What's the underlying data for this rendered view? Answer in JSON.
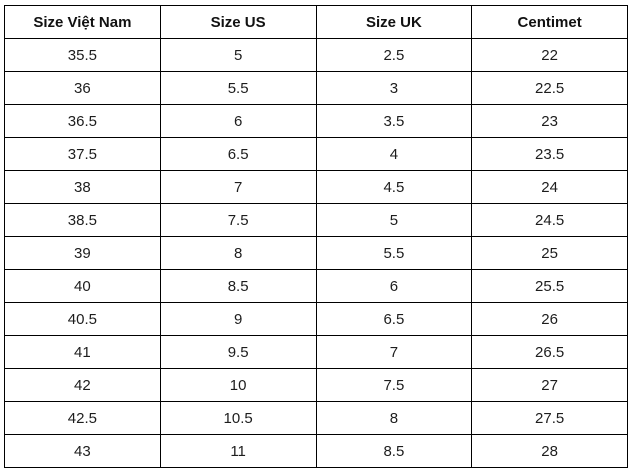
{
  "chart_data": {
    "type": "table",
    "title": "",
    "columns": [
      "Size Việt Nam",
      "Size US",
      "Size UK",
      "Centimet"
    ],
    "rows": [
      [
        "35.5",
        "5",
        "2.5",
        "22"
      ],
      [
        "36",
        "5.5",
        "3",
        "22.5"
      ],
      [
        "36.5",
        "6",
        "3.5",
        "23"
      ],
      [
        "37.5",
        "6.5",
        "4",
        "23.5"
      ],
      [
        "38",
        "7",
        "4.5",
        "24"
      ],
      [
        "38.5",
        "7.5",
        "5",
        "24.5"
      ],
      [
        "39",
        "8",
        "5.5",
        "25"
      ],
      [
        "40",
        "8.5",
        "6",
        "25.5"
      ],
      [
        "40.5",
        "9",
        "6.5",
        "26"
      ],
      [
        "41",
        "9.5",
        "7",
        "26.5"
      ],
      [
        "42",
        "10",
        "7.5",
        "27"
      ],
      [
        "42.5",
        "10.5",
        "8",
        "27.5"
      ],
      [
        "43",
        "11",
        "8.5",
        "28"
      ]
    ],
    "layout": {
      "grid": true,
      "header_bold": true,
      "text_align": "center"
    },
    "colors": {
      "border": "#000000",
      "text": "#1d1d1d",
      "header_text": "#111111",
      "background": "#ffffff"
    }
  }
}
